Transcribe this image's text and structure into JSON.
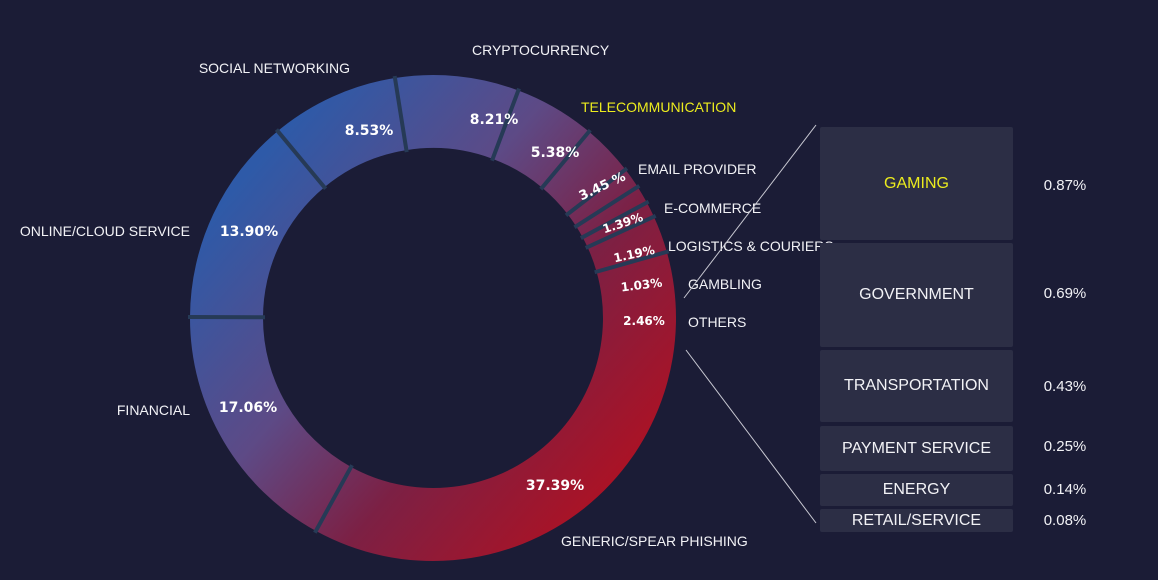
{
  "colors": {
    "background": "#1b1c36",
    "blue": "#2e5aa8",
    "purple": "#5d4a86",
    "crimson": "#7c2044",
    "red": "#b31020",
    "separator": "#263a56",
    "panel": "#2c2e45",
    "highlight": "#ecec1e",
    "text": "#f2f2f6"
  },
  "chart_data": {
    "type": "pie",
    "donut": true,
    "unit": "%",
    "slices": [
      {
        "label": "GENERIC/SPEAR PHISHING",
        "value": 37.39,
        "value_text": "37.39%"
      },
      {
        "label": "FINANCIAL",
        "value": 17.06,
        "value_text": "17.06%"
      },
      {
        "label": "ONLINE/CLOUD SERVICE",
        "value": 13.9,
        "value_text": "13.90%"
      },
      {
        "label": "SOCIAL NETWORKING",
        "value": 8.53,
        "value_text": "8.53%"
      },
      {
        "label": "CRYPTOCURRENCY",
        "value": 8.21,
        "value_text": "8.21%"
      },
      {
        "label": "TELECOMMUNICATION",
        "value": 5.38,
        "value_text": "5.38%",
        "highlight": true
      },
      {
        "label": "EMAIL PROVIDER",
        "value": 3.45,
        "value_text": "3.45 %"
      },
      {
        "label": "E-COMMERCE",
        "value": 1.39,
        "value_text": "1.39%"
      },
      {
        "label": "LOGISTICS & COURIERS",
        "value": 1.19,
        "value_text": "1.19%"
      },
      {
        "label": "GAMBLING",
        "value": 1.03,
        "value_text": "1.03%"
      },
      {
        "label": "OTHERS",
        "value": 2.46,
        "value_text": "2.46%"
      }
    ],
    "others_breakdown": [
      {
        "label": "GAMING",
        "value": 0.87,
        "value_text": "0.87%",
        "highlight": true
      },
      {
        "label": "GOVERNMENT",
        "value": 0.69,
        "value_text": "0.69%"
      },
      {
        "label": "TRANSPORTATION",
        "value": 0.43,
        "value_text": "0.43%"
      },
      {
        "label": "PAYMENT SERVICE",
        "value": 0.25,
        "value_text": "0.25%"
      },
      {
        "label": "ENERGY",
        "value": 0.14,
        "value_text": "0.14%"
      },
      {
        "label": "RETAIL/SERVICE",
        "value": 0.08,
        "value_text": "0.08%"
      }
    ]
  }
}
